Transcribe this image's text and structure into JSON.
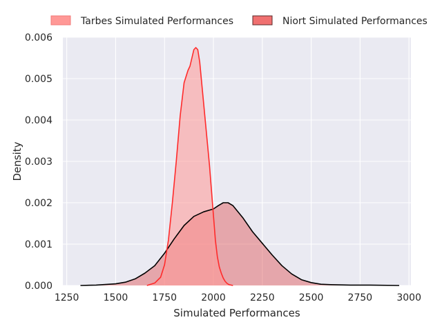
{
  "chart_data": {
    "type": "area",
    "title": "",
    "xlabel": "Simulated Performances",
    "ylabel": "Density",
    "xlim": [
      1230,
      3010
    ],
    "ylim": [
      0,
      0.006
    ],
    "grid": true,
    "legend_placement": "top-center, above plot, two columns",
    "x_ticks": [
      1250,
      1500,
      1750,
      2000,
      2250,
      2500,
      2750,
      3000
    ],
    "x_tick_labels": [
      "1250",
      "1500",
      "1750",
      "2000",
      "2250",
      "2500",
      "2750",
      "3000"
    ],
    "y_ticks": [
      0,
      0.001,
      0.002,
      0.003,
      0.004,
      0.005,
      0.006
    ],
    "y_tick_labels": [
      "0.000",
      "0.001",
      "0.002",
      "0.003",
      "0.004",
      "0.005",
      "0.006"
    ],
    "series": [
      {
        "name": "Tarbes Simulated Performances",
        "fill_color": "#ff9896",
        "line_color": "#ff2a2a",
        "x": [
          1660,
          1700,
          1730,
          1750,
          1770,
          1790,
          1810,
          1830,
          1850,
          1870,
          1880,
          1890,
          1900,
          1910,
          1920,
          1930,
          1940,
          1950,
          1960,
          1970,
          1980,
          1990,
          2000,
          2010,
          2020,
          2030,
          2040,
          2050,
          2060,
          2070,
          2080,
          2100
        ],
        "y": [
          0.0,
          6e-05,
          0.0002,
          0.0005,
          0.0011,
          0.002,
          0.003,
          0.0041,
          0.0049,
          0.0052,
          0.0053,
          0.0055,
          0.0057,
          0.00575,
          0.0057,
          0.0054,
          0.0049,
          0.0044,
          0.0039,
          0.0034,
          0.0029,
          0.0023,
          0.0017,
          0.0011,
          0.0007,
          0.00045,
          0.0003,
          0.00018,
          0.0001,
          5e-05,
          2e-05,
          0.0
        ]
      },
      {
        "name": "Niort Simulated Performances",
        "fill_color": "#e05555",
        "line_color": "#000000",
        "x": [
          1320,
          1400,
          1500,
          1550,
          1600,
          1650,
          1700,
          1750,
          1800,
          1850,
          1900,
          1950,
          2000,
          2025,
          2050,
          2075,
          2100,
          2150,
          2200,
          2250,
          2300,
          2350,
          2400,
          2450,
          2500,
          2550,
          2600,
          2700,
          2800,
          2950
        ],
        "y": [
          0.0,
          1e-05,
          4e-05,
          8e-05,
          0.00016,
          0.0003,
          0.00048,
          0.00078,
          0.00113,
          0.00145,
          0.00167,
          0.00178,
          0.00185,
          0.00193,
          0.002,
          0.002,
          0.00193,
          0.00164,
          0.0013,
          0.00102,
          0.00074,
          0.00048,
          0.00028,
          0.00014,
          7e-05,
          3e-05,
          2e-05,
          1e-05,
          1e-05,
          0.0
        ]
      }
    ]
  }
}
